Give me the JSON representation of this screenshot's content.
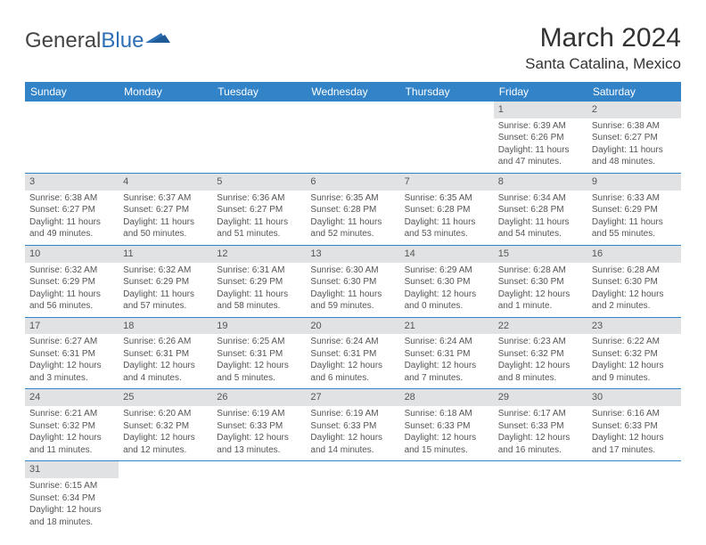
{
  "logo": {
    "word1": "General",
    "word2": "Blue"
  },
  "title": "March 2024",
  "location": "Santa Catalina, Mexico",
  "colors": {
    "header_bg": "#3383c8",
    "header_text": "#ffffff",
    "daynum_bg": "#e1e2e3",
    "cell_border": "#3383c8",
    "body_text": "#555555",
    "title_text": "#333333",
    "logo_accent": "#2d6fb5"
  },
  "fonts": {
    "title_size": 30,
    "location_size": 17,
    "dayheader_size": 12,
    "daynum_size": 11,
    "cell_size": 10
  },
  "day_headers": [
    "Sunday",
    "Monday",
    "Tuesday",
    "Wednesday",
    "Thursday",
    "Friday",
    "Saturday"
  ],
  "first_weekday": 5,
  "num_days": 31,
  "days": {
    "1": {
      "sunrise": "6:39 AM",
      "sunset": "6:26 PM",
      "daylight": "11 hours and 47 minutes."
    },
    "2": {
      "sunrise": "6:38 AM",
      "sunset": "6:27 PM",
      "daylight": "11 hours and 48 minutes."
    },
    "3": {
      "sunrise": "6:38 AM",
      "sunset": "6:27 PM",
      "daylight": "11 hours and 49 minutes."
    },
    "4": {
      "sunrise": "6:37 AM",
      "sunset": "6:27 PM",
      "daylight": "11 hours and 50 minutes."
    },
    "5": {
      "sunrise": "6:36 AM",
      "sunset": "6:27 PM",
      "daylight": "11 hours and 51 minutes."
    },
    "6": {
      "sunrise": "6:35 AM",
      "sunset": "6:28 PM",
      "daylight": "11 hours and 52 minutes."
    },
    "7": {
      "sunrise": "6:35 AM",
      "sunset": "6:28 PM",
      "daylight": "11 hours and 53 minutes."
    },
    "8": {
      "sunrise": "6:34 AM",
      "sunset": "6:28 PM",
      "daylight": "11 hours and 54 minutes."
    },
    "9": {
      "sunrise": "6:33 AM",
      "sunset": "6:29 PM",
      "daylight": "11 hours and 55 minutes."
    },
    "10": {
      "sunrise": "6:32 AM",
      "sunset": "6:29 PM",
      "daylight": "11 hours and 56 minutes."
    },
    "11": {
      "sunrise": "6:32 AM",
      "sunset": "6:29 PM",
      "daylight": "11 hours and 57 minutes."
    },
    "12": {
      "sunrise": "6:31 AM",
      "sunset": "6:29 PM",
      "daylight": "11 hours and 58 minutes."
    },
    "13": {
      "sunrise": "6:30 AM",
      "sunset": "6:30 PM",
      "daylight": "11 hours and 59 minutes."
    },
    "14": {
      "sunrise": "6:29 AM",
      "sunset": "6:30 PM",
      "daylight": "12 hours and 0 minutes."
    },
    "15": {
      "sunrise": "6:28 AM",
      "sunset": "6:30 PM",
      "daylight": "12 hours and 1 minute."
    },
    "16": {
      "sunrise": "6:28 AM",
      "sunset": "6:30 PM",
      "daylight": "12 hours and 2 minutes."
    },
    "17": {
      "sunrise": "6:27 AM",
      "sunset": "6:31 PM",
      "daylight": "12 hours and 3 minutes."
    },
    "18": {
      "sunrise": "6:26 AM",
      "sunset": "6:31 PM",
      "daylight": "12 hours and 4 minutes."
    },
    "19": {
      "sunrise": "6:25 AM",
      "sunset": "6:31 PM",
      "daylight": "12 hours and 5 minutes."
    },
    "20": {
      "sunrise": "6:24 AM",
      "sunset": "6:31 PM",
      "daylight": "12 hours and 6 minutes."
    },
    "21": {
      "sunrise": "6:24 AM",
      "sunset": "6:31 PM",
      "daylight": "12 hours and 7 minutes."
    },
    "22": {
      "sunrise": "6:23 AM",
      "sunset": "6:32 PM",
      "daylight": "12 hours and 8 minutes."
    },
    "23": {
      "sunrise": "6:22 AM",
      "sunset": "6:32 PM",
      "daylight": "12 hours and 9 minutes."
    },
    "24": {
      "sunrise": "6:21 AM",
      "sunset": "6:32 PM",
      "daylight": "12 hours and 11 minutes."
    },
    "25": {
      "sunrise": "6:20 AM",
      "sunset": "6:32 PM",
      "daylight": "12 hours and 12 minutes."
    },
    "26": {
      "sunrise": "6:19 AM",
      "sunset": "6:33 PM",
      "daylight": "12 hours and 13 minutes."
    },
    "27": {
      "sunrise": "6:19 AM",
      "sunset": "6:33 PM",
      "daylight": "12 hours and 14 minutes."
    },
    "28": {
      "sunrise": "6:18 AM",
      "sunset": "6:33 PM",
      "daylight": "12 hours and 15 minutes."
    },
    "29": {
      "sunrise": "6:17 AM",
      "sunset": "6:33 PM",
      "daylight": "12 hours and 16 minutes."
    },
    "30": {
      "sunrise": "6:16 AM",
      "sunset": "6:33 PM",
      "daylight": "12 hours and 17 minutes."
    },
    "31": {
      "sunrise": "6:15 AM",
      "sunset": "6:34 PM",
      "daylight": "12 hours and 18 minutes."
    }
  },
  "labels": {
    "sunrise": "Sunrise:",
    "sunset": "Sunset:",
    "daylight": "Daylight:"
  }
}
